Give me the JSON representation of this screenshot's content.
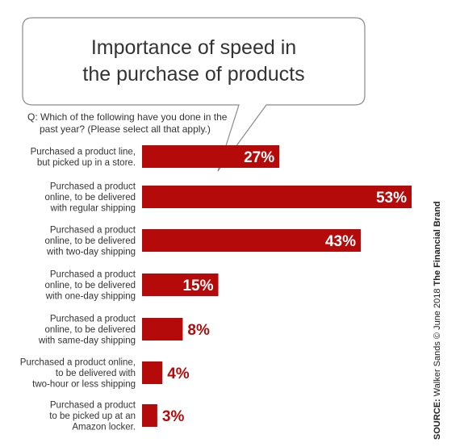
{
  "colors": {
    "bar": "#b40a0a",
    "text": "#333333",
    "value_light": "#ffffff",
    "value_dark": "#b40a0a"
  },
  "title_lines": [
    "Importance of speed in",
    "the purchase of products"
  ],
  "question_lines": [
    "Q: Which of the following have you done in the",
    "past year? (Please  select all that apply.)"
  ],
  "source": {
    "label": "SOURCE:",
    "text": " Walker Sands © June 2018 ",
    "brand": "The Financial Brand"
  },
  "chart_data": {
    "type": "bar",
    "orientation": "horizontal",
    "categories": [
      [
        "Purchased a product line,",
        "but picked up in a store."
      ],
      [
        "Purchased a product",
        "online, to be delivered",
        "with regular shipping"
      ],
      [
        "Purchased a product",
        "online, to be delivered",
        "with two-day shipping"
      ],
      [
        "Purchased a product",
        "online, to be delivered",
        "with one-day shipping"
      ],
      [
        "Purchased a product",
        "online, to be delivered",
        "with same-day shipping"
      ],
      [
        "Purchased a product online,",
        "to be delivered with",
        "two-hour or less shipping"
      ],
      [
        "Purchased a product",
        "to be picked up at an",
        "Amazon locker."
      ]
    ],
    "values": [
      27,
      53,
      43,
      15,
      8,
      4,
      3
    ],
    "value_labels": [
      "27%",
      "53%",
      "43%",
      "15%",
      "8%",
      "4%",
      "3%"
    ],
    "unit": "%",
    "title": "Importance of speed in the purchase of products",
    "xlabel": "",
    "ylabel": "",
    "xlim": [
      0,
      53
    ],
    "grid": false,
    "legend": "none"
  }
}
